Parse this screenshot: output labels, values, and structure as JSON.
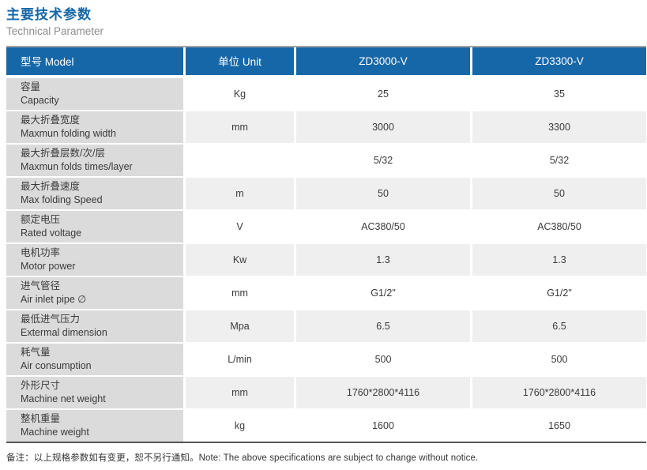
{
  "header": {
    "title_zh": "主要技术参数",
    "title_en": "Technical Parameter"
  },
  "table": {
    "columns": [
      "型号 Model",
      "单位 Unit",
      "ZD3000-V",
      "ZD3300-V"
    ],
    "rows": [
      {
        "label_zh": "容量",
        "label_en": "Capacity",
        "unit": "Kg",
        "zd3000": "25",
        "zd3300": "35"
      },
      {
        "label_zh": "最大折叠宽度",
        "label_en": "Maxmun folding width",
        "unit": "mm",
        "zd3000": "3000",
        "zd3300": "3300"
      },
      {
        "label_zh": "最大折叠层数/次/层",
        "label_en": "Maxmun folds times/layer",
        "unit": "",
        "zd3000": "5/32",
        "zd3300": "5/32"
      },
      {
        "label_zh": "最大折叠速度",
        "label_en": "Max folding Speed",
        "unit": "m",
        "zd3000": "50",
        "zd3300": "50"
      },
      {
        "label_zh": "额定电压",
        "label_en": "Rated voltage",
        "unit": "V",
        "zd3000": "AC380/50",
        "zd3300": "AC380/50"
      },
      {
        "label_zh": "电机功率",
        "label_en": "Motor power",
        "unit": "Kw",
        "zd3000": "1.3",
        "zd3300": "1.3"
      },
      {
        "label_zh": "进气管径",
        "label_en": "Air inlet pipe ∅",
        "unit": "mm",
        "zd3000": "G1/2\"",
        "zd3300": "G1/2\""
      },
      {
        "label_zh": "最低进气压力",
        "label_en": "Extermal dimension",
        "unit": "Mpa",
        "zd3000": "6.5",
        "zd3300": "6.5"
      },
      {
        "label_zh": "耗气量",
        "label_en": "Air consumption",
        "unit": "L/min",
        "zd3000": "500",
        "zd3300": "500"
      },
      {
        "label_zh": "外形尺寸",
        "label_en": "Machine net weight",
        "unit": "mm",
        "zd3000": "1760*2800*4116",
        "zd3300": "1760*2800*4116"
      },
      {
        "label_zh": "整机重量",
        "label_en": "Machine weight",
        "unit": "kg",
        "zd3000": "1600",
        "zd3300": "1650"
      }
    ]
  },
  "footnote": {
    "text": "备注：以上规格参数如有变更，恕不另行通知。Note: The above specifications are subject to change without notice."
  },
  "colors": {
    "accent_blue": "#1667a8",
    "label_column_gray": "#dbdbdb",
    "stripe_gray": "#efefef",
    "top_rule_gray": "#a2a2a2",
    "bottom_rule_gray": "#565656"
  }
}
